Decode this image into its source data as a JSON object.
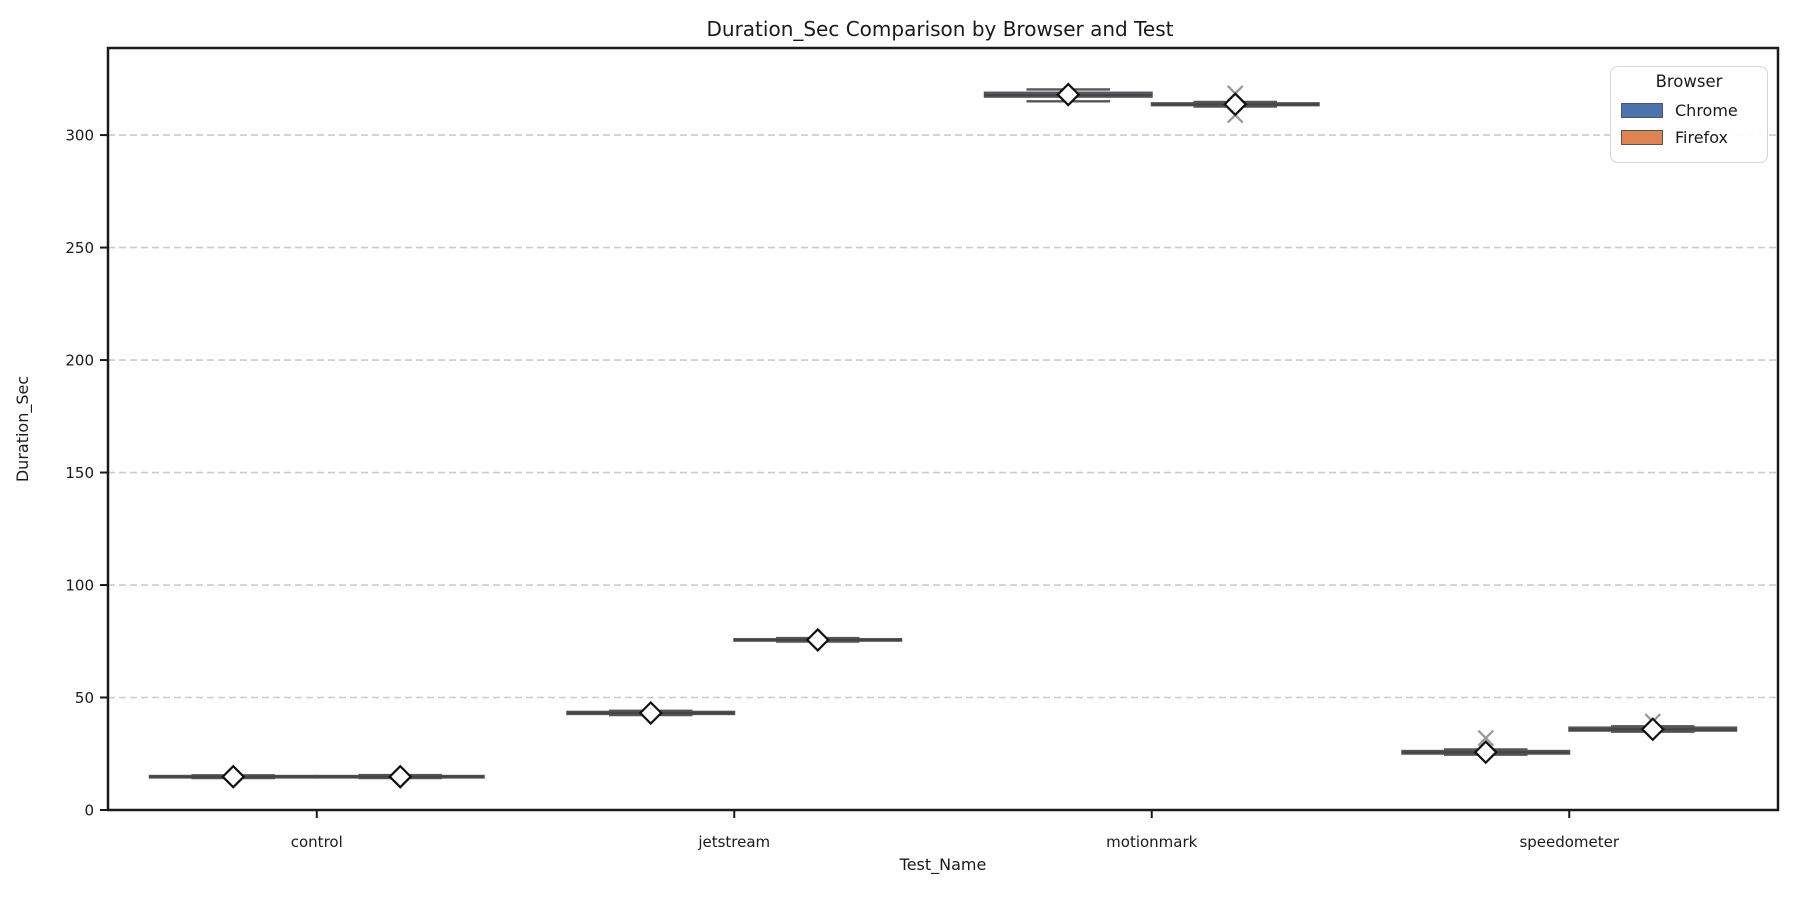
{
  "figure": {
    "title": "Duration_Sec Comparison by Browser and Test"
  },
  "chart_data": {
    "type": "boxplot",
    "title": "Duration_Sec Comparison by Browser and Test",
    "xlabel": "Test_Name",
    "ylabel": "Duration_Sec",
    "ylim": [
      0,
      338.7
    ],
    "yticks": [
      0,
      50,
      100,
      150,
      200,
      250,
      300
    ],
    "grid": "horizontal-dashed",
    "categories": [
      "control",
      "jetstream",
      "motionmark",
      "speedometer"
    ],
    "legend": {
      "title": "Browser",
      "position": "upper-right",
      "entries": [
        {
          "label": "Chrome",
          "color": "#4C72B0"
        },
        {
          "label": "Firefox",
          "color": "#DD8452"
        }
      ]
    },
    "style": {
      "box_edge_color": "#555555",
      "median_color": "#454545",
      "mean_marker": "white diamond, black edge",
      "outlier_marker": "gray x",
      "outlier_color": "#999999",
      "grid_color": "#cccccc",
      "spine_color": "#1a1a1a"
    },
    "series": [
      {
        "name": "Chrome",
        "color": "#4C72B0",
        "boxes": [
          {
            "category": "control",
            "whislo": 14.2,
            "q1": 14.4,
            "med": 14.8,
            "q3": 15.2,
            "whishi": 15.4,
            "mean": 14.8,
            "outliers": []
          },
          {
            "category": "jetstream",
            "whislo": 42.2,
            "q1": 42.6,
            "med": 43.1,
            "q3": 43.7,
            "whishi": 44.1,
            "mean": 43.1,
            "outliers": []
          },
          {
            "category": "motionmark",
            "whislo": 315.0,
            "q1": 317.0,
            "med": 317.8,
            "q3": 318.9,
            "whishi": 320.3,
            "mean": 318.0,
            "outliers": []
          },
          {
            "category": "speedometer",
            "whislo": 24.6,
            "q1": 25.0,
            "med": 25.6,
            "q3": 26.3,
            "whishi": 26.9,
            "mean": 25.7,
            "outliers": [
              32.0
            ]
          }
        ]
      },
      {
        "name": "Firefox",
        "color": "#DD8452",
        "boxes": [
          {
            "category": "control",
            "whislo": 14.2,
            "q1": 14.4,
            "med": 14.8,
            "q3": 15.2,
            "whishi": 15.5,
            "mean": 14.8,
            "outliers": []
          },
          {
            "category": "jetstream",
            "whislo": 74.9,
            "q1": 75.2,
            "med": 75.6,
            "q3": 76.0,
            "whishi": 76.4,
            "mean": 75.6,
            "outliers": []
          },
          {
            "category": "motionmark",
            "whislo": 312.7,
            "q1": 313.2,
            "med": 313.6,
            "q3": 314.2,
            "whishi": 314.7,
            "mean": 313.7,
            "outliers": [
              318.5,
              308.9
            ]
          },
          {
            "category": "speedometer",
            "whislo": 34.8,
            "q1": 35.2,
            "med": 35.9,
            "q3": 36.7,
            "whishi": 37.2,
            "mean": 35.9,
            "outliers": [
              39.3
            ]
          }
        ]
      }
    ]
  }
}
